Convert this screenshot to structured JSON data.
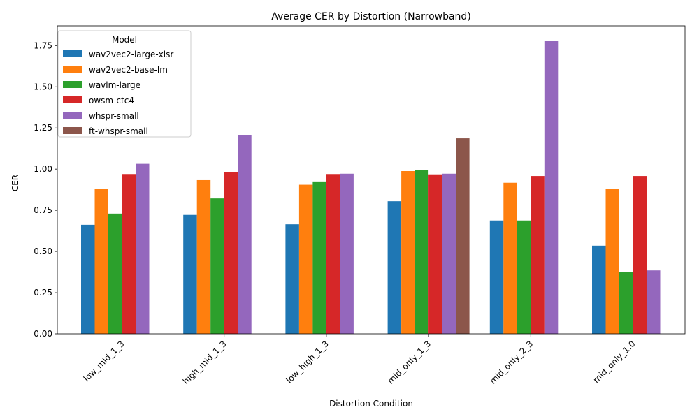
{
  "chart_data": {
    "type": "bar",
    "title": "Average CER by Distortion (Narrowband)",
    "xlabel": "Distortion Condition",
    "ylabel": "CER",
    "ylim": [
      0,
      1.87
    ],
    "yticks": [
      "0.00",
      "0.25",
      "0.50",
      "0.75",
      "1.00",
      "1.25",
      "1.50",
      "1.75"
    ],
    "grid": false,
    "legend": {
      "title": "Model",
      "placement": "top-left"
    },
    "categories": [
      "low_mid_1_3",
      "high_mid_1_3",
      "low_high_1_3",
      "mid_only_1_3",
      "mid_only_2_3",
      "mid_only_1.0"
    ],
    "series": [
      {
        "name": "wav2vec2-large-xlsr",
        "color": "#1f77b4",
        "values": [
          0.662,
          0.722,
          0.665,
          0.805,
          0.688,
          0.535
        ]
      },
      {
        "name": "wav2vec2-base-lm",
        "color": "#ff7f0e",
        "values": [
          0.878,
          0.933,
          0.905,
          0.988,
          0.917,
          0.878
        ]
      },
      {
        "name": "wavlm-large",
        "color": "#2ca02c",
        "values": [
          0.73,
          0.822,
          0.925,
          0.993,
          0.688,
          0.374
        ]
      },
      {
        "name": "owsm-ctc4",
        "color": "#d62728",
        "values": [
          0.97,
          0.98,
          0.97,
          0.968,
          0.958,
          0.958
        ]
      },
      {
        "name": "whspr-small",
        "color": "#9467bd",
        "values": [
          1.032,
          1.205,
          0.972,
          0.972,
          1.78,
          0.385
        ]
      },
      {
        "name": "ft-whspr-small",
        "color": "#8c564b",
        "values": [
          null,
          null,
          null,
          1.187,
          null,
          null
        ]
      }
    ]
  }
}
